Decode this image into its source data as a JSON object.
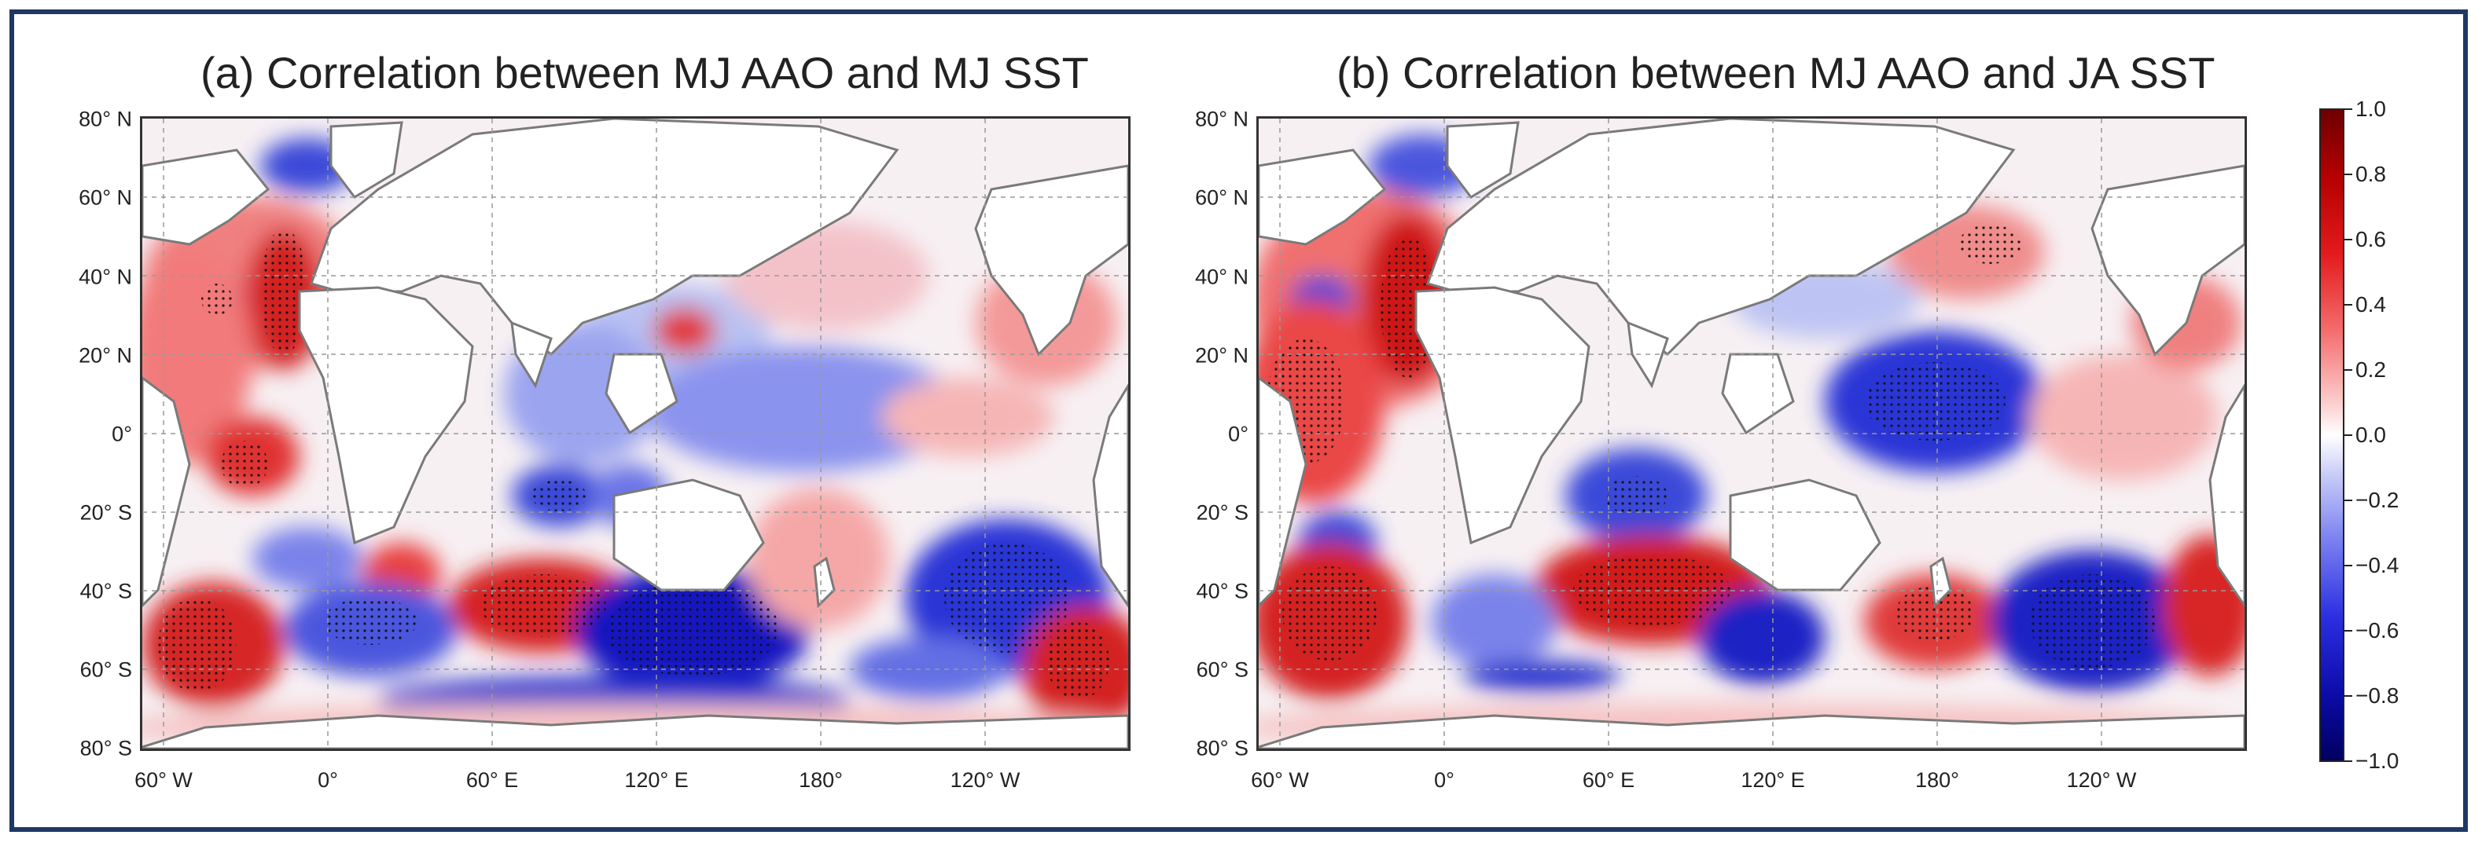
{
  "panels": [
    {
      "title": "(a) Correlation between MJ AAO and MJ SST"
    },
    {
      "title": "(b) Correlation between MJ AAO and JA SST"
    }
  ],
  "lat_labels": [
    "80° N",
    "60° N",
    "40° N",
    "20° N",
    "0°",
    "20° S",
    "40° S",
    "60° S",
    "80° S"
  ],
  "lon_labels": [
    "60° W",
    "0°",
    "60° E",
    "120° E",
    "180°",
    "120° W"
  ],
  "colorbar": {
    "ticks": [
      "1.0",
      "0.8",
      "0.6",
      "0.4",
      "0.2",
      "0.0",
      "−0.2",
      "−0.4",
      "−0.6",
      "−0.8",
      "−1.0"
    ],
    "colors": {
      "max": "#6e0000",
      "pos": "#e31a1c",
      "zero": "#ffffff",
      "neg": "#2b2fe0",
      "min": "#000060"
    }
  },
  "colors": {
    "land": "#ffffff",
    "coast": "#7a7a7a",
    "grid": "#999999",
    "frame": "#1f3864"
  }
}
